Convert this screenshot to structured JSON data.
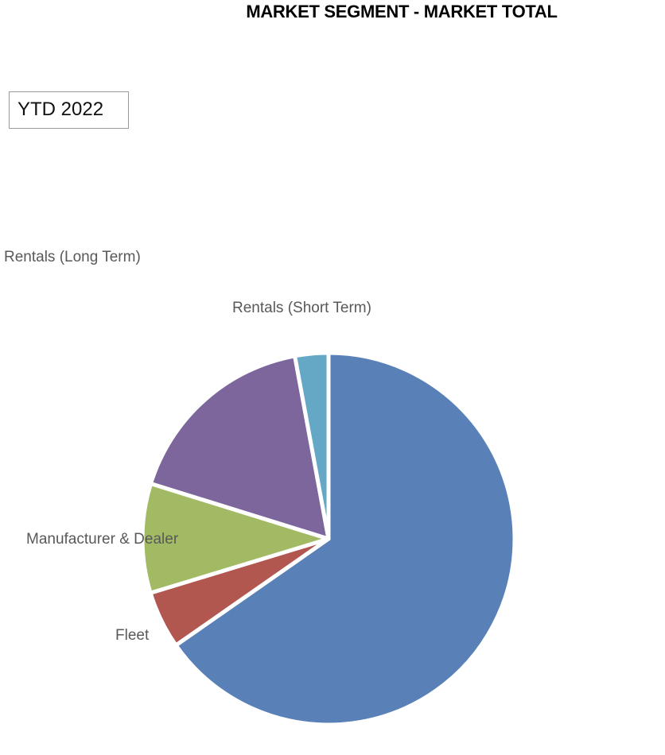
{
  "chart_data": {
    "type": "pie",
    "title": "MARKET SEGMENT - MARKET TOTAL",
    "period": "YTD 2022",
    "slices": [
      {
        "label": "",
        "value": 65.3,
        "color": "#5a80b8"
      },
      {
        "label": "Fleet",
        "value": 5.0,
        "color": "#b25650"
      },
      {
        "label": "Manufacturer & Dealer",
        "value": 9.5,
        "color": "#a2ba63"
      },
      {
        "label": "Rentals (Long Term)",
        "value": 17.3,
        "color": "#7c669c"
      },
      {
        "label": "Rentals (Short Term)",
        "value": 2.9,
        "color": "#64a8c5"
      }
    ]
  }
}
